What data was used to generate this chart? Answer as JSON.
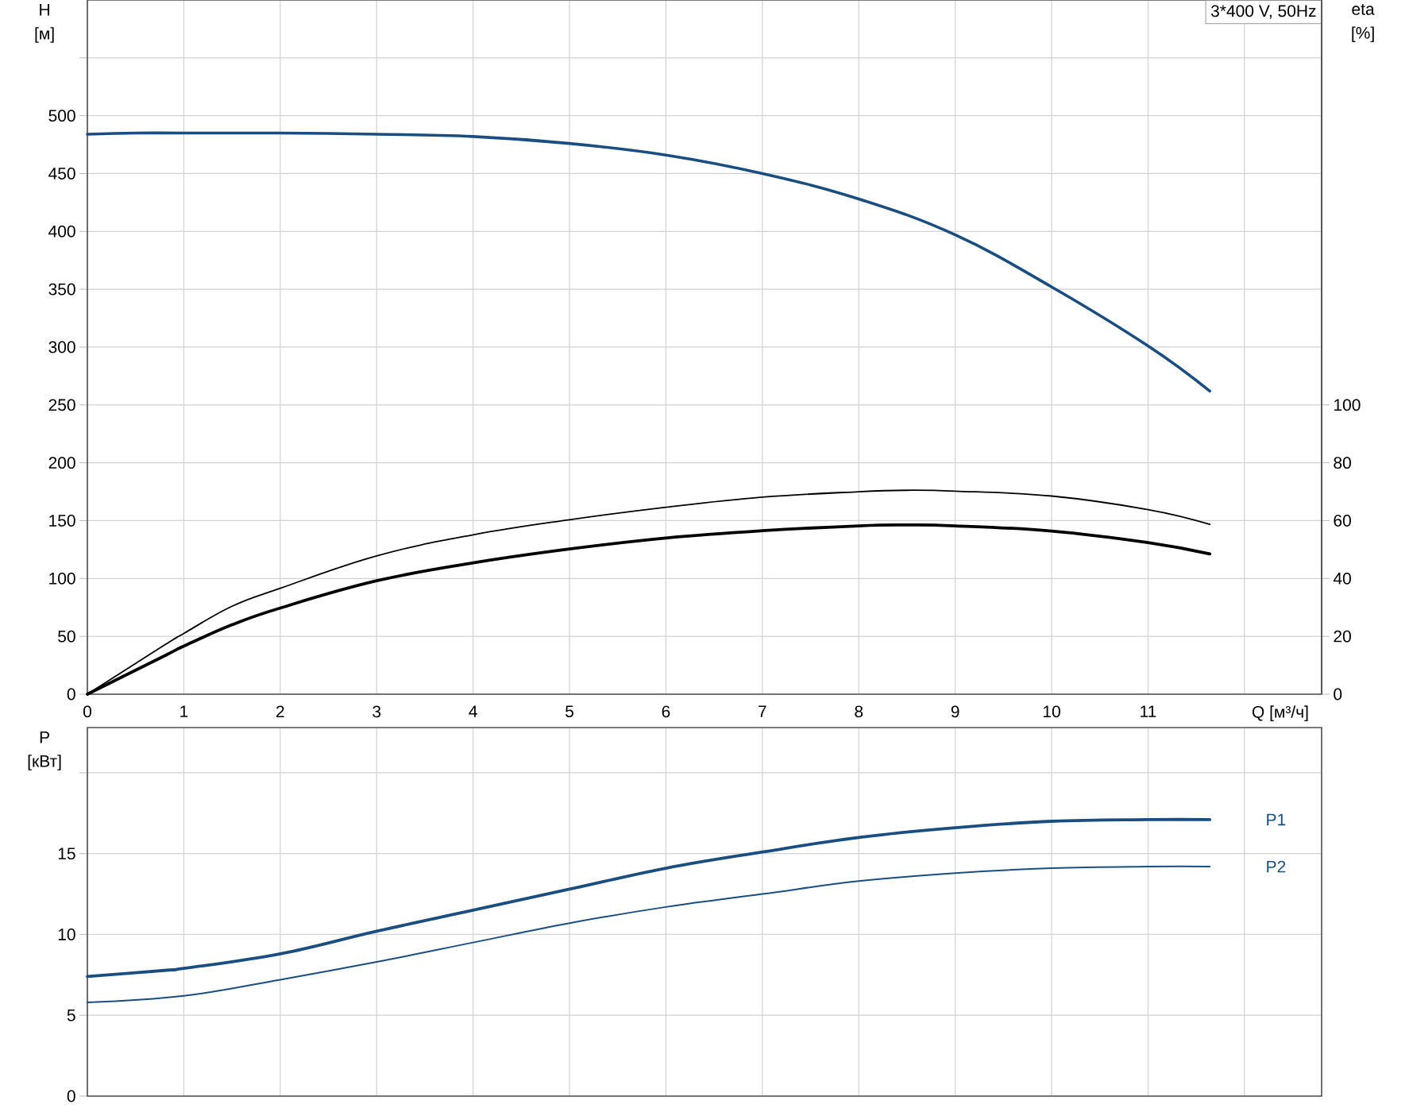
{
  "chart_data": [
    {
      "type": "line",
      "xlabel": "Q [м³/ч]",
      "ylabel": "H [м]",
      "y2label": "eta [%]",
      "annotations": [
        "3*400 V, 50Hz"
      ],
      "xlim": [
        0,
        12.8
      ],
      "xticks": [
        0,
        1,
        2,
        3,
        4,
        5,
        6,
        7,
        8,
        9,
        10,
        11,
        {
          "value": 12,
          "label": null
        }
      ],
      "ylim": [
        0,
        600
      ],
      "yticks": [
        0,
        50,
        100,
        150,
        200,
        250,
        300,
        350,
        400,
        450,
        500,
        {
          "value": 550,
          "label": null
        }
      ],
      "y2lim": [
        0,
        240
      ],
      "y2ticks": [
        0,
        20,
        40,
        60,
        80,
        100
      ],
      "grid": true,
      "series": [
        {
          "color": "#1a4d80",
          "x": [
            0,
            0.5,
            1,
            2,
            3,
            4,
            5,
            6,
            7,
            8,
            9,
            10,
            11,
            11.64
          ],
          "values": [
            484,
            485,
            485,
            485,
            484,
            482,
            476,
            466,
            450,
            428,
            397,
            352,
            301,
            262
          ]
        },
        {
          "color": "#000000",
          "axis": "y2",
          "x": [
            0,
            0.8,
            1,
            1.5,
            2,
            3,
            4,
            5,
            6,
            7,
            8,
            8.5,
            9,
            10,
            11,
            11.64
          ],
          "values": [
            0,
            17.0,
            21.0,
            30.4,
            36.6,
            47.8,
            55.1,
            60.3,
            64.6,
            68.1,
            70.0,
            70.5,
            70.2,
            68.5,
            63.8,
            58.7
          ]
        },
        {
          "color": "#000000",
          "axis": "y2",
          "x": [
            0,
            0.82,
            1,
            1.5,
            2,
            3,
            4,
            5,
            6,
            7,
            8,
            8.5,
            9,
            10,
            11,
            11.64
          ],
          "values": [
            0,
            13.6,
            16.6,
            24.0,
            29.8,
            39.2,
            45.4,
            50.2,
            54.0,
            56.5,
            58.2,
            58.5,
            58.2,
            56.4,
            52.4,
            48.5
          ]
        }
      ]
    },
    {
      "type": "line",
      "ylabel": "P [кВт]",
      "xlim": [
        0,
        12.8
      ],
      "xticks": [
        0,
        1,
        2,
        3,
        4,
        5,
        6,
        7,
        8,
        9,
        10,
        11,
        12
      ],
      "ylim": [
        0,
        22.8
      ],
      "yticks": [
        0,
        5,
        10,
        15,
        {
          "value": 20,
          "label": null
        }
      ],
      "grid": true,
      "tick_labels": "y",
      "series": [
        {
          "name": "P1",
          "color": "#1a4d80",
          "x": [
            0,
            0.85,
            1,
            2,
            3,
            4,
            5,
            6,
            7,
            8,
            9,
            10,
            11,
            11.64
          ],
          "values": [
            7.4,
            7.8,
            7.9,
            8.8,
            10.2,
            11.5,
            12.8,
            14.1,
            15.1,
            16.0,
            16.6,
            17.0,
            17.1,
            17.1
          ]
        },
        {
          "name": "P2",
          "color": "#1a4d80",
          "x": [
            0,
            1,
            2,
            3,
            4,
            5,
            6,
            7,
            8,
            9,
            10,
            11,
            11.64
          ],
          "values": [
            5.8,
            6.2,
            7.2,
            8.3,
            9.5,
            10.7,
            11.7,
            12.5,
            13.3,
            13.8,
            14.1,
            14.2,
            14.2
          ]
        }
      ]
    }
  ]
}
